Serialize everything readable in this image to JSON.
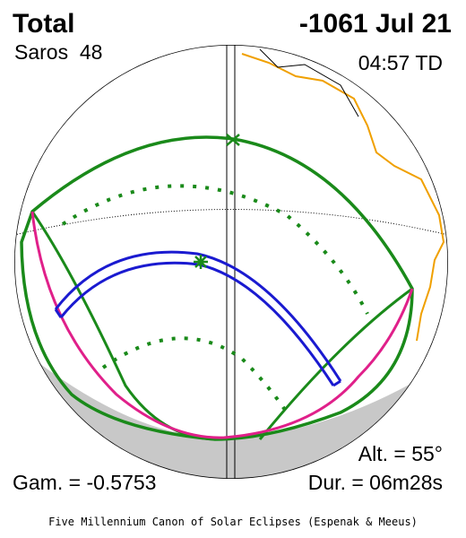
{
  "header": {
    "type": "Total",
    "date": "-1061 Jul 21",
    "saros": "Saros  48",
    "time": "04:57 TD"
  },
  "stats": {
    "altitude": "Alt. = 55°",
    "gamma": "Gam. = -0.5753",
    "duration": "Dur. = 06m28s"
  },
  "footer": "Five Millennium Canon of Solar Eclipses (Espenak & Meeus)"
}
